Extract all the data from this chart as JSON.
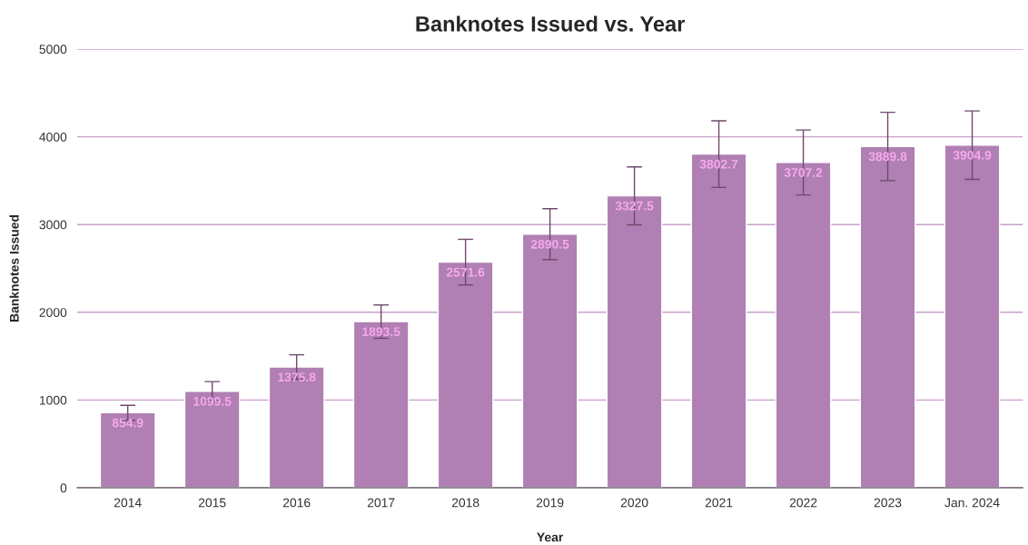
{
  "chart_data": {
    "type": "bar",
    "title": "Banknotes Issued vs. Year",
    "xlabel": "Year",
    "ylabel": "Banknotes Issued",
    "categories": [
      "2014",
      "2015",
      "2016",
      "2017",
      "2018",
      "2019",
      "2020",
      "2021",
      "2022",
      "2023",
      "Jan. 2024"
    ],
    "values": [
      854.9,
      1099.5,
      1375.8,
      1893.5,
      2571.6,
      2890.5,
      3327.5,
      3802.7,
      3707.2,
      3889.8,
      3904.9
    ],
    "errors": [
      85,
      110,
      140,
      190,
      260,
      290,
      330,
      380,
      370,
      390,
      390
    ],
    "color": "#b07fb3",
    "ylim": [
      0,
      5000
    ],
    "yticks": [
      0,
      1000,
      2000,
      3000,
      4000,
      5000
    ],
    "grid": "y",
    "data_labels": true,
    "legend": false
  }
}
